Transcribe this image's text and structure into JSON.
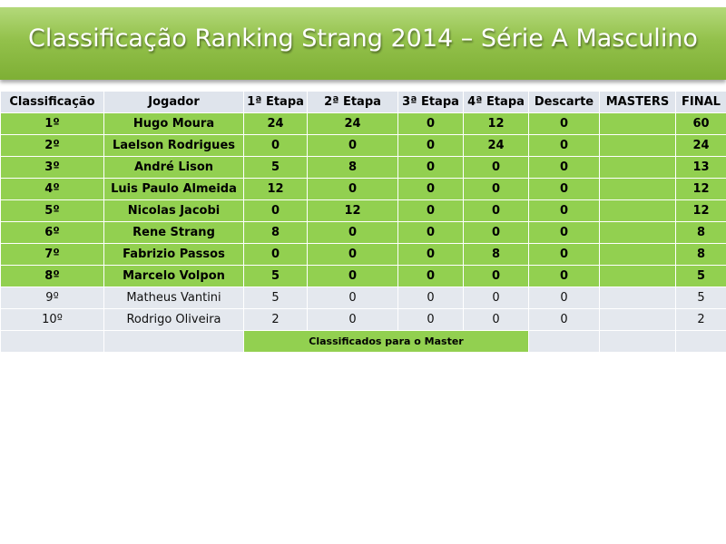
{
  "title": "Classificação Ranking Strang 2014 – Série A Masculino",
  "columns": [
    "Classificação",
    "Jogador",
    "1ª Etapa",
    "2ª Etapa",
    "3ª Etapa",
    "4ª Etapa",
    "Descarte",
    "MASTERS",
    "FINAL"
  ],
  "rows": [
    {
      "pos": "1º",
      "player": "Hugo Moura",
      "e1": "24",
      "e2": "24",
      "e3": "0",
      "e4": "12",
      "descarte": "0",
      "masters": "",
      "final": "60"
    },
    {
      "pos": "2º",
      "player": "Laelson Rodrigues",
      "e1": "0",
      "e2": "0",
      "e3": "0",
      "e4": "24",
      "descarte": "0",
      "masters": "",
      "final": "24"
    },
    {
      "pos": "3º",
      "player": "André Lison",
      "e1": "5",
      "e2": "8",
      "e3": "0",
      "e4": "0",
      "descarte": "0",
      "masters": "",
      "final": "13"
    },
    {
      "pos": "4º",
      "player": "Luis Paulo Almeida",
      "e1": "12",
      "e2": "0",
      "e3": "0",
      "e4": "0",
      "descarte": "0",
      "masters": "",
      "final": "12"
    },
    {
      "pos": "5º",
      "player": "Nicolas Jacobi",
      "e1": "0",
      "e2": "12",
      "e3": "0",
      "e4": "0",
      "descarte": "0",
      "masters": "",
      "final": "12"
    },
    {
      "pos": "6º",
      "player": "Rene Strang",
      "e1": "8",
      "e2": "0",
      "e3": "0",
      "e4": "0",
      "descarte": "0",
      "masters": "",
      "final": "8"
    },
    {
      "pos": "7º",
      "player": "Fabrizio  Passos",
      "e1": "0",
      "e2": "0",
      "e3": "0",
      "e4": "8",
      "descarte": "0",
      "masters": "",
      "final": "8"
    },
    {
      "pos": "8º",
      "player": "Marcelo Volpon",
      "e1": "5",
      "e2": "0",
      "e3": "0",
      "e4": "0",
      "descarte": "0",
      "masters": "",
      "final": "5"
    },
    {
      "pos": "9º",
      "player": "Matheus Vantini",
      "e1": "5",
      "e2": "0",
      "e3": "0",
      "e4": "0",
      "descarte": "0",
      "masters": "",
      "final": "5"
    },
    {
      "pos": "10º",
      "player": "Rodrigo Oliveira",
      "e1": "2",
      "e2": "0",
      "e3": "0",
      "e4": "0",
      "descarte": "0",
      "masters": "",
      "final": "2"
    }
  ],
  "qualified_count": 8,
  "legend": "Classificados para  o Master",
  "colors": {
    "qualified": "#92d050",
    "regular": "#e4e8ee",
    "header": "#dfe4ec",
    "banner": "#93c14b"
  }
}
